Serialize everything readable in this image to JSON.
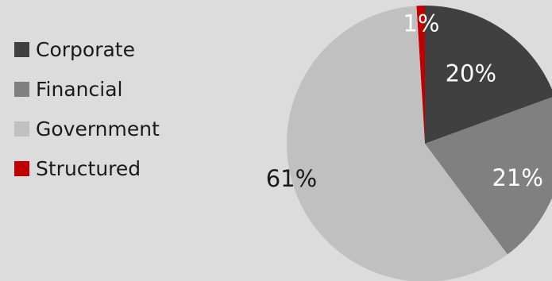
{
  "chart_data": {
    "type": "pie",
    "categories": [
      "Corporate",
      "Financial",
      "Government",
      "Structured"
    ],
    "values": [
      20,
      21,
      61,
      1
    ],
    "data_labels": [
      "20%",
      "21%",
      "61%",
      "1%"
    ],
    "colors": [
      "#404040",
      "#808080",
      "#c0c0c0",
      "#c00000"
    ],
    "label_colors": [
      "#ffffff",
      "#ffffff",
      "#1a1a1a",
      "#ffffff"
    ],
    "legend_position": "left"
  }
}
